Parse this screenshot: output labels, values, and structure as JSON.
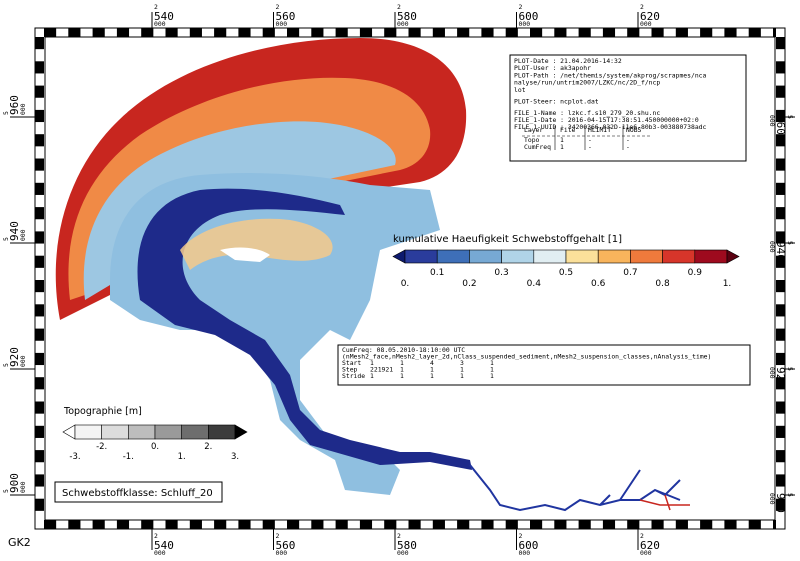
{
  "frame": {
    "x_ticks": [
      {
        "prefix": "2",
        "main": "540",
        "suffix": "000"
      },
      {
        "prefix": "2",
        "main": "560",
        "suffix": "000"
      },
      {
        "prefix": "2",
        "main": "580",
        "suffix": "000"
      },
      {
        "prefix": "2",
        "main": "600",
        "suffix": "000"
      },
      {
        "prefix": "2",
        "main": "620",
        "suffix": "000"
      }
    ],
    "y_ticks": [
      {
        "prefix": "5",
        "main": "960",
        "suffix": "000"
      },
      {
        "prefix": "5",
        "main": "940",
        "suffix": "000"
      },
      {
        "prefix": "5",
        "main": "920",
        "suffix": "000"
      },
      {
        "prefix": "5",
        "main": "900",
        "suffix": "000"
      }
    ],
    "corner_label": "GK2"
  },
  "info_box": {
    "lines": [
      "PLOT-Date : 21.04.2016-14:32",
      "PLOT-User : ak3apohr",
      "PLOT-Path : /net/themis/system/akprog/scrapmes/nca",
      "nalyse/run/untrim2007/LZKC/nc/2D_f/ncp",
      "lot",
      "PLOT-Steer: ncplot.dat",
      "FILE_1-Name : lzkc.f.s10_279_20.shu.nc",
      "FILE_1-Date : 2016-04-15T17:38:51.450000000+02:0",
      "FILE_1-UUID : 34200366-032D-11e6-80b3-003880738adc"
    ],
    "table": {
      "header": [
        "Layer",
        "File",
        "HLIMIT",
        "NOBS"
      ],
      "rows": [
        [
          "Topo",
          "1",
          "-",
          "-"
        ],
        [
          "CumFreq",
          "1",
          "-",
          "-"
        ]
      ]
    }
  },
  "colorbar": {
    "title": "kumulative Haeufigkeit Schwebstoffgehalt [1]",
    "labels": [
      "0.",
      "0.1",
      "0.2",
      "0.3",
      "0.4",
      "0.5",
      "0.6",
      "0.7",
      "0.8",
      "0.9",
      "1."
    ],
    "colors": [
      "#0d1a6e",
      "#2a3c9c",
      "#3e6fb8",
      "#77a9d4",
      "#b0d4e8",
      "#e1eef2",
      "#fbe09a",
      "#f8b45c",
      "#ef7a3c",
      "#d7352a",
      "#9e0a1e",
      "#5a0010"
    ]
  },
  "query_box": {
    "lines": [
      "CumFreq: 08.05.2010-18:10:00 UTC",
      "(nMesh2_face,nMesh2_layer_2d,nClass_suspended_sediment,nMesh2_suspension_classes,nAnalysis_time)"
    ],
    "rows": [
      [
        "Start",
        "1",
        "1",
        "4",
        "3",
        "1"
      ],
      [
        "Step",
        "221921",
        "1",
        "1",
        "1",
        "1"
      ],
      [
        "Stride",
        "1",
        "1",
        "1",
        "1",
        "1"
      ]
    ]
  },
  "topo_colorbar": {
    "title": "Topographie [m]",
    "labels": [
      "-3.",
      "-2.",
      "-1.",
      "0.",
      "1.",
      "2.",
      "3."
    ],
    "colors": [
      "#ffffff",
      "#f4f4f4",
      "#dcdcdc",
      "#bdbdbd",
      "#9a9a9a",
      "#6e6e6e",
      "#3c3c3c",
      "#000000"
    ]
  },
  "class_label": "Schwebstoffklasse: Schluff_20"
}
